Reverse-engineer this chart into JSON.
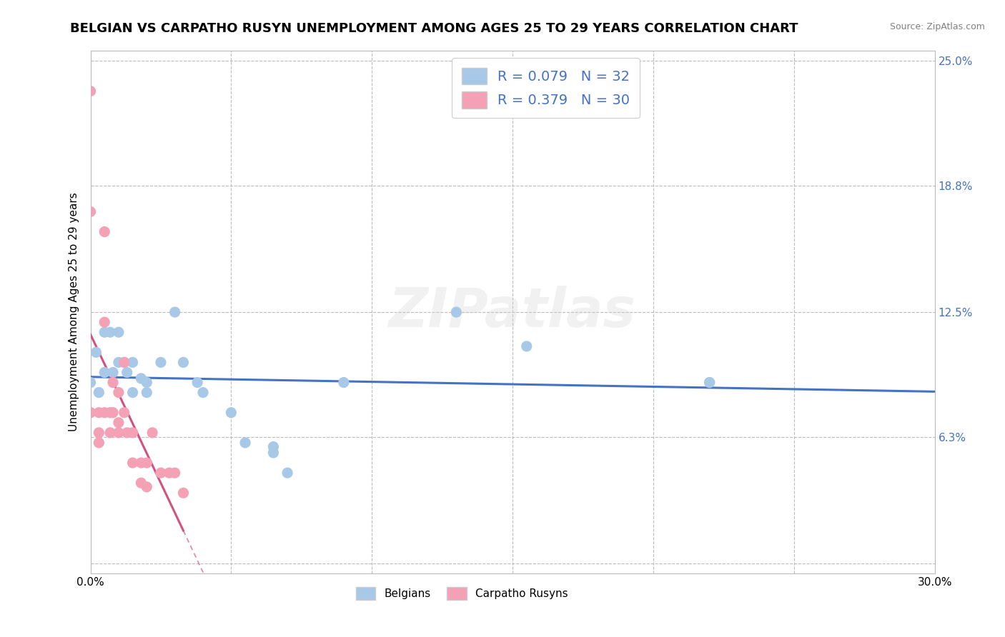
{
  "title": "BELGIAN VS CARPATHO RUSYN UNEMPLOYMENT AMONG AGES 25 TO 29 YEARS CORRELATION CHART",
  "source": "Source: ZipAtlas.com",
  "ylabel": "Unemployment Among Ages 25 to 29 years",
  "xlim": [
    0.0,
    0.3
  ],
  "ylim": [
    -0.005,
    0.255
  ],
  "xticks": [
    0.0,
    0.05,
    0.1,
    0.15,
    0.2,
    0.25,
    0.3
  ],
  "xticklabels": [
    "0.0%",
    "",
    "",
    "",
    "",
    "",
    "30.0%"
  ],
  "ytick_positions": [
    0.0,
    0.063,
    0.125,
    0.188,
    0.25
  ],
  "ytick_labels_right": [
    "",
    "6.3%",
    "12.5%",
    "18.8%",
    "25.0%"
  ],
  "belgian_R": 0.079,
  "belgian_N": 32,
  "carpatho_R": 0.379,
  "carpatho_N": 30,
  "belgian_color": "#A8C8E8",
  "carpatho_color": "#F4A0B5",
  "line_color_belgian": "#4472C4",
  "line_color_carpatho": "#D45080",
  "label_color": "#4472C4",
  "background_color": "#FFFFFF",
  "grid_color": "#BBBBBB",
  "belgian_x": [
    0.0,
    0.0,
    0.002,
    0.003,
    0.005,
    0.005,
    0.007,
    0.008,
    0.01,
    0.01,
    0.012,
    0.013,
    0.015,
    0.015,
    0.018,
    0.02,
    0.02,
    0.025,
    0.03,
    0.033,
    0.038,
    0.04,
    0.05,
    0.055,
    0.065,
    0.065,
    0.07,
    0.09,
    0.13,
    0.155,
    0.22,
    0.22
  ],
  "belgian_y": [
    0.09,
    0.075,
    0.105,
    0.085,
    0.115,
    0.095,
    0.115,
    0.095,
    0.115,
    0.1,
    0.1,
    0.095,
    0.085,
    0.1,
    0.092,
    0.085,
    0.09,
    0.1,
    0.125,
    0.1,
    0.09,
    0.085,
    0.075,
    0.06,
    0.058,
    0.055,
    0.045,
    0.09,
    0.125,
    0.108,
    0.09,
    0.09
  ],
  "carpatho_x": [
    0.0,
    0.0,
    0.0,
    0.003,
    0.003,
    0.003,
    0.005,
    0.005,
    0.005,
    0.007,
    0.007,
    0.008,
    0.008,
    0.01,
    0.01,
    0.01,
    0.012,
    0.012,
    0.013,
    0.015,
    0.015,
    0.018,
    0.018,
    0.02,
    0.02,
    0.022,
    0.025,
    0.028,
    0.03,
    0.033
  ],
  "carpatho_y": [
    0.235,
    0.175,
    0.075,
    0.075,
    0.065,
    0.06,
    0.165,
    0.12,
    0.075,
    0.075,
    0.065,
    0.09,
    0.075,
    0.085,
    0.07,
    0.065,
    0.1,
    0.075,
    0.065,
    0.065,
    0.05,
    0.05,
    0.04,
    0.05,
    0.038,
    0.065,
    0.045,
    0.045,
    0.045,
    0.035
  ],
  "watermark": "ZIPatlas",
  "title_fontsize": 13,
  "label_fontsize": 11,
  "tick_fontsize": 11,
  "legend_fontsize": 14
}
